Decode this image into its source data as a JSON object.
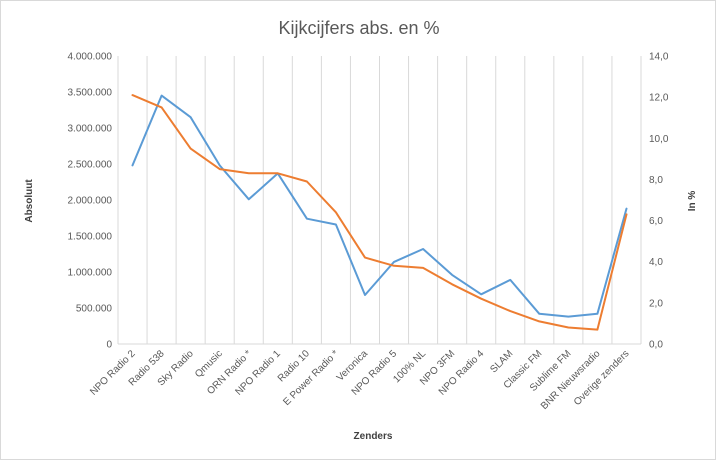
{
  "chart_data": {
    "type": "line",
    "title": "Kijkcijfers abs. en %",
    "xlabel": "Zenders",
    "ylabel": "Absoluut",
    "y2label": "In %",
    "categories": [
      "NPO Radio 2",
      "Radio 538",
      "Sky Radio",
      "Qmusic",
      "ORN Radio *",
      "NPO Radio 1",
      "Radio 10",
      "E Power Radio *",
      "Veronica",
      "NPO Radio 5",
      "100% NL",
      "NPO 3FM",
      "NPO Radio 4",
      "SLAM",
      "Classic FM",
      "Sublime FM",
      "BNR Nieuwsradio",
      "Overige zenders"
    ],
    "ylim": [
      0,
      4000000
    ],
    "y2lim": [
      0,
      14
    ],
    "yticks": [
      "0",
      "500.000",
      "1.000.000",
      "1.500.000",
      "2.000.000",
      "2.500.000",
      "3.000.000",
      "3.500.000",
      "4.000.000"
    ],
    "y2ticks": [
      "0,0",
      "2,0",
      "4,0",
      "6,0",
      "8,0",
      "10,0",
      "12,0",
      "14,0"
    ],
    "grid": true,
    "series": [
      {
        "axis": "left",
        "color": "#5b9bd5",
        "values": [
          2480000,
          3450000,
          3150000,
          2480000,
          2010000,
          2370000,
          1740000,
          1660000,
          680000,
          1140000,
          1320000,
          960000,
          690000,
          890000,
          420000,
          380000,
          420000,
          1880000
        ]
      },
      {
        "axis": "right",
        "color": "#ed7d31",
        "values": [
          12.1,
          11.5,
          9.5,
          8.5,
          8.3,
          8.3,
          7.9,
          6.4,
          4.2,
          3.8,
          3.7,
          2.9,
          2.2,
          1.6,
          1.1,
          0.8,
          0.7,
          6.3
        ]
      }
    ]
  }
}
